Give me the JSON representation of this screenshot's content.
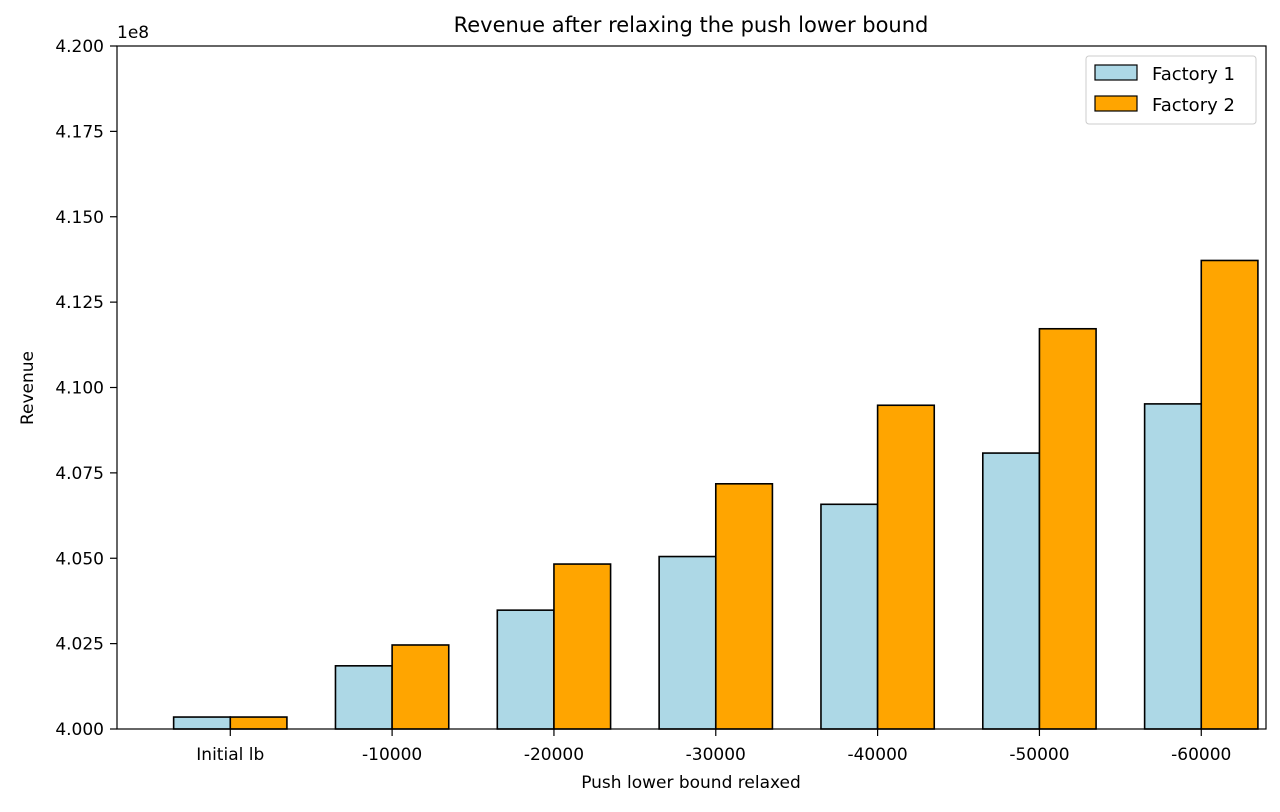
{
  "chart_data": {
    "type": "bar",
    "title": "Revenue after relaxing the push lower bound",
    "xlabel": "Push lower bound relaxed",
    "ylabel": "Revenue",
    "y_offset_label": "1e8",
    "y_scale": 100000000,
    "categories": [
      "Initial lb",
      "-10000",
      "-20000",
      "-30000",
      "-40000",
      "-50000",
      "-60000"
    ],
    "ylim": [
      400000000,
      420000000
    ],
    "yticks": [
      400000000,
      402500000,
      405000000,
      407500000,
      410000000,
      412500000,
      415000000,
      417500000,
      420000000
    ],
    "ytick_labels": [
      "4.000",
      "4.025",
      "4.050",
      "4.075",
      "4.100",
      "4.125",
      "4.150",
      "4.175",
      "4.200"
    ],
    "series": [
      {
        "name": "Factory 1",
        "color": "#add8e6",
        "values": [
          400350000,
          401850000,
          403480000,
          405050000,
          406580000,
          408080000,
          409520000
        ]
      },
      {
        "name": "Factory 2",
        "color": "#ffa500",
        "values": [
          400350000,
          402460000,
          404830000,
          407180000,
          409480000,
          411720000,
          413720000
        ]
      }
    ],
    "edge_color": "#000000",
    "grid": false,
    "legend_position": "top-right"
  }
}
